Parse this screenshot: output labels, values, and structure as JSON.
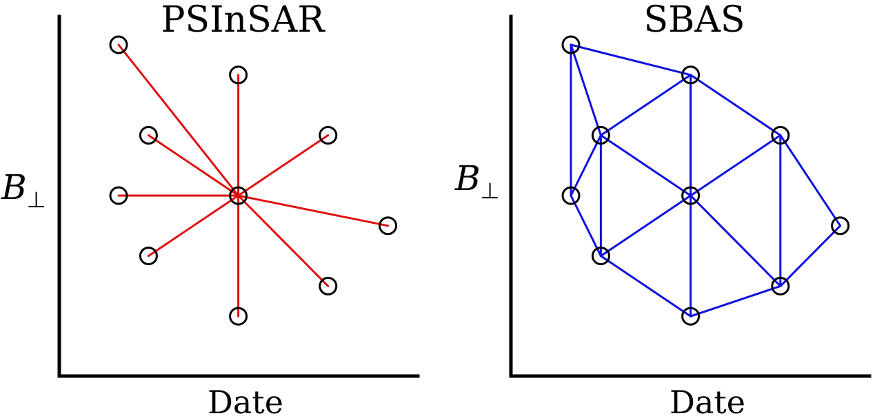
{
  "colors": {
    "psinsar_edges": "#e01010",
    "sbas_edges": "#1010e0",
    "nodes": "#000000",
    "axes": "#000000"
  },
  "panels": [
    {
      "id": "psinsar",
      "title": "PSInSAR",
      "xlabel": "Date",
      "ylabel": "B",
      "ylabel_sub": "⊥",
      "edge_color_key": "psinsar_edges",
      "nodes": [
        {
          "date": 1.0,
          "bperp": 5.0
        },
        {
          "date": 5.0,
          "bperp": 4.0
        },
        {
          "date": 2.0,
          "bperp": 2.0
        },
        {
          "date": 8.0,
          "bperp": 2.0
        },
        {
          "date": 1.0,
          "bperp": 0.0
        },
        {
          "date": 5.0,
          "bperp": 0.0
        },
        {
          "date": 10.0,
          "bperp": -1.0
        },
        {
          "date": 2.0,
          "bperp": -2.0
        },
        {
          "date": 8.0,
          "bperp": -3.0
        },
        {
          "date": 5.0,
          "bperp": -4.0
        }
      ],
      "edges": [
        [
          5,
          0
        ],
        [
          5,
          1
        ],
        [
          5,
          2
        ],
        [
          5,
          3
        ],
        [
          5,
          4
        ],
        [
          5,
          6
        ],
        [
          5,
          7
        ],
        [
          5,
          8
        ],
        [
          5,
          9
        ]
      ]
    },
    {
      "id": "sbas",
      "title": "SBAS",
      "xlabel": "Date",
      "ylabel": "B",
      "ylabel_sub": "⊥",
      "edge_color_key": "sbas_edges",
      "nodes": [
        {
          "date": 1.0,
          "bperp": 5.0
        },
        {
          "date": 5.0,
          "bperp": 4.0
        },
        {
          "date": 2.0,
          "bperp": 2.0
        },
        {
          "date": 8.0,
          "bperp": 2.0
        },
        {
          "date": 1.0,
          "bperp": 0.0
        },
        {
          "date": 5.0,
          "bperp": 0.0
        },
        {
          "date": 10.0,
          "bperp": -1.0
        },
        {
          "date": 2.0,
          "bperp": -2.0
        },
        {
          "date": 8.0,
          "bperp": -3.0
        },
        {
          "date": 5.0,
          "bperp": -4.0
        }
      ],
      "edges": [
        [
          0,
          1
        ],
        [
          0,
          2
        ],
        [
          0,
          4
        ],
        [
          1,
          2
        ],
        [
          1,
          3
        ],
        [
          1,
          5
        ],
        [
          1,
          9
        ],
        [
          2,
          4
        ],
        [
          2,
          5
        ],
        [
          2,
          7
        ],
        [
          3,
          5
        ],
        [
          3,
          6
        ],
        [
          3,
          8
        ],
        [
          4,
          7
        ],
        [
          5,
          7
        ],
        [
          5,
          8
        ],
        [
          6,
          8
        ],
        [
          7,
          9
        ],
        [
          8,
          9
        ]
      ]
    }
  ]
}
